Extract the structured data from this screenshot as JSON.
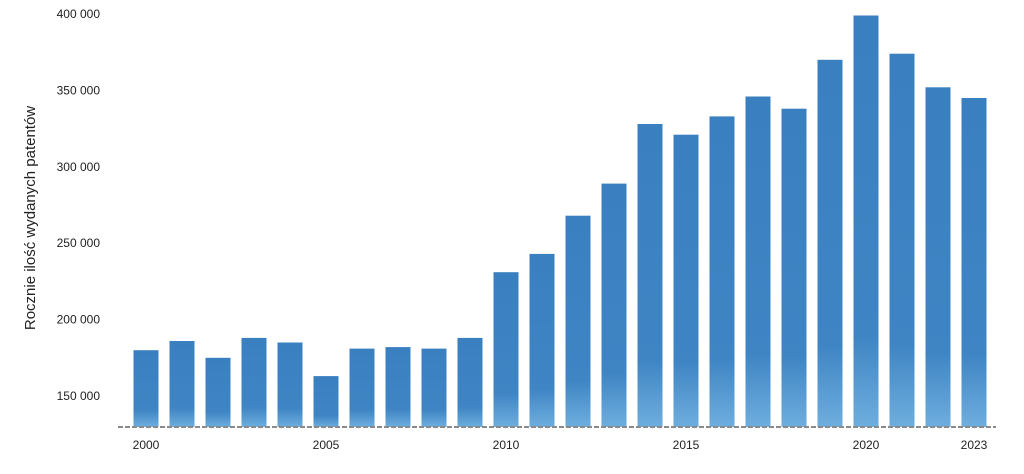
{
  "chart_data": {
    "type": "bar",
    "title": "",
    "xlabel": "",
    "ylabel": "Rocznie ilość wydanych patentów",
    "categories": [
      "2000",
      "2001",
      "2002",
      "2003",
      "2004",
      "2005",
      "2006",
      "2007",
      "2008",
      "2009",
      "2010",
      "2011",
      "2012",
      "2013",
      "2014",
      "2015",
      "2016",
      "2017",
      "2018",
      "2019",
      "2020",
      "2021",
      "2022",
      "2023"
    ],
    "values": [
      180000,
      186000,
      175000,
      188000,
      185000,
      163000,
      181000,
      182000,
      181000,
      188000,
      231000,
      243000,
      268000,
      289000,
      328000,
      321000,
      333000,
      346000,
      338000,
      370000,
      399000,
      374000,
      352000,
      345000
    ],
    "x_tick_labels": [
      "2000",
      "2005",
      "2010",
      "2015",
      "2020",
      "2023"
    ],
    "y_tick_labels": [
      "150 000",
      "200 000",
      "250 000",
      "300 000",
      "350 000",
      "400 000"
    ],
    "y_ticks": [
      150000,
      200000,
      250000,
      300000,
      350000,
      400000
    ],
    "ylim": [
      130000,
      400000
    ],
    "grid": false,
    "legend": "none",
    "colors": {
      "bar_top": "#3a7fc0",
      "bar_bottom": "#6eaede",
      "baseline": "#8a8a8a"
    }
  }
}
